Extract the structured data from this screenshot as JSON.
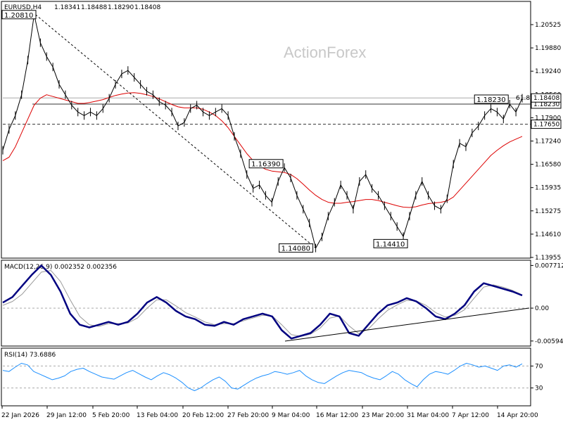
{
  "chart_data": {
    "type": "line",
    "symbol": "EURUSD,H4",
    "ohlc": {
      "open": "1.18341",
      "high": "1.18488",
      "low": "1.18290",
      "close": "1.18408"
    },
    "watermark": "ActionForex",
    "x_tick_labels": [
      "22 Jan 2026",
      "29 Jan 12:00",
      "5 Feb 20:00",
      "13 Feb 04:00",
      "20 Feb 12:00",
      "27 Feb 20:00",
      "9 Mar 04:00",
      "16 Mar 12:00",
      "23 Mar 20:00",
      "31 Mar 04:00",
      "7 Apr 12:00",
      "14 Apr 20:00"
    ],
    "main_panel": {
      "ylim": [
        1.1385,
        1.2115
      ],
      "y_ticks": [
        "1.20525",
        "1.19880",
        "1.19240",
        "1.18560",
        "1.17900",
        "1.17240",
        "1.16580",
        "1.15935",
        "1.15275",
        "1.14610",
        "1.13955"
      ],
      "price_series": [
        1.169,
        1.175,
        1.179,
        1.185,
        1.195,
        1.2081,
        1.2,
        1.196,
        1.193,
        1.188,
        1.185,
        1.182,
        1.18,
        1.179,
        1.18,
        1.179,
        1.181,
        1.184,
        1.188,
        1.191,
        1.192,
        1.19,
        1.188,
        1.186,
        1.185,
        1.183,
        1.182,
        1.18,
        1.176,
        1.177,
        1.181,
        1.182,
        1.18,
        1.179,
        1.18,
        1.181,
        1.179,
        1.173,
        1.168,
        1.162,
        1.158,
        1.159,
        1.156,
        1.154,
        1.16,
        1.164,
        1.161,
        1.156,
        1.152,
        1.148,
        1.1408,
        1.144,
        1.15,
        1.154,
        1.159,
        1.156,
        1.152,
        1.16,
        1.162,
        1.158,
        1.156,
        1.153,
        1.15,
        1.147,
        1.1441,
        1.15,
        1.156,
        1.16,
        1.156,
        1.153,
        1.152,
        1.155,
        1.165,
        1.171,
        1.17,
        1.174,
        1.176,
        1.179,
        1.181,
        1.18,
        1.178,
        1.1823,
        1.18,
        1.184
      ],
      "moving_average": [
        1.166,
        1.167,
        1.17,
        1.174,
        1.178,
        1.182,
        1.184,
        1.185,
        1.1845,
        1.184,
        1.1835,
        1.183,
        1.1825,
        1.1825,
        1.1828,
        1.1832,
        1.1836,
        1.1842,
        1.1848,
        1.1852,
        1.1855,
        1.1856,
        1.1854,
        1.185,
        1.1845,
        1.1838,
        1.183,
        1.1822,
        1.1815,
        1.1812,
        1.1812,
        1.1812,
        1.1808,
        1.18,
        1.179,
        1.1775,
        1.1755,
        1.173,
        1.1705,
        1.168,
        1.166,
        1.1645,
        1.1635,
        1.163,
        1.1628,
        1.1626,
        1.162,
        1.1608,
        1.1592,
        1.1575,
        1.156,
        1.1548,
        1.154,
        1.1537,
        1.1537,
        1.154,
        1.1542,
        1.1545,
        1.1548,
        1.1548,
        1.1545,
        1.154,
        1.1535,
        1.153,
        1.1526,
        1.1525,
        1.1527,
        1.1532,
        1.1536,
        1.1538,
        1.154,
        1.1544,
        1.1555,
        1.1575,
        1.1595,
        1.1615,
        1.1635,
        1.1655,
        1.1675,
        1.169,
        1.1703,
        1.1714,
        1.1722,
        1.173
      ],
      "horizontal_levels": [
        {
          "price": 1.1765,
          "label": "1.17650",
          "style": "dashed"
        },
        {
          "price": 1.1823,
          "label": "1.18230",
          "style": "solid"
        }
      ],
      "current_price": {
        "price": 1.18408,
        "label": "1.18408"
      },
      "fib_text": "61.8",
      "annotations": [
        {
          "label": "1.20810",
          "price": 1.2081
        },
        {
          "label": "1.16390",
          "price": 1.1639
        },
        {
          "label": "1.14080",
          "price": 1.1408
        },
        {
          "label": "1.14410",
          "price": 1.1441
        },
        {
          "label": "1.18230",
          "price": 1.1823
        }
      ],
      "colors": {
        "price": "#000000",
        "moving_average": "#dd0000",
        "trendline": "#000000"
      }
    },
    "macd_panel": {
      "label": "MACD(12,26,9) 0.002352 0.002356",
      "ylim": [
        -0.0066,
        0.0084
      ],
      "y_ticks": [
        "0.007712",
        "0.00",
        "-0.005944"
      ],
      "zero_line": 0.0,
      "macd_series": [
        0.001,
        0.002,
        0.004,
        0.006,
        0.0077,
        0.006,
        0.003,
        -0.001,
        -0.003,
        -0.0035,
        -0.003,
        -0.0025,
        -0.003,
        -0.0025,
        -0.001,
        0.001,
        0.002,
        0.001,
        -0.0005,
        -0.0015,
        -0.002,
        -0.003,
        -0.0032,
        -0.0025,
        -0.003,
        -0.002,
        -0.0015,
        -0.001,
        -0.0015,
        -0.004,
        -0.0055,
        -0.005,
        -0.0045,
        -0.003,
        -0.001,
        -0.0015,
        -0.0045,
        -0.005,
        -0.003,
        -0.001,
        0.0005,
        0.001,
        0.0018,
        0.0012,
        0.0,
        -0.0015,
        -0.002,
        -0.001,
        0.0005,
        0.003,
        0.0045,
        0.004,
        0.0035,
        0.003,
        0.0023
      ],
      "signal_series": [
        0.0005,
        0.0012,
        0.0025,
        0.0045,
        0.0065,
        0.0068,
        0.0048,
        0.0015,
        -0.0015,
        -0.003,
        -0.0033,
        -0.0028,
        -0.0028,
        -0.0027,
        -0.0018,
        0.0,
        0.0015,
        0.0015,
        0.0004,
        -0.0008,
        -0.0016,
        -0.0025,
        -0.003,
        -0.0028,
        -0.0028,
        -0.0023,
        -0.0018,
        -0.0013,
        -0.0014,
        -0.003,
        -0.0048,
        -0.0051,
        -0.0047,
        -0.0036,
        -0.0018,
        -0.0014,
        -0.0032,
        -0.0046,
        -0.0038,
        -0.002,
        -0.0004,
        0.0006,
        0.0014,
        0.0013,
        0.0005,
        -0.0008,
        -0.0016,
        -0.0013,
        -0.0003,
        0.0018,
        0.0038,
        0.0042,
        0.0038,
        0.0032,
        0.0024
      ],
      "colors": {
        "macd": "#000080",
        "signal": "#999999"
      }
    },
    "rsi_panel": {
      "label": "RSI(14) 73.6886",
      "ylim": [
        0,
        100
      ],
      "y_ticks": [
        "70",
        "30"
      ],
      "levels": [
        70,
        30
      ],
      "series": [
        62,
        60,
        68,
        75,
        72,
        60,
        55,
        50,
        45,
        48,
        52,
        60,
        64,
        66,
        60,
        55,
        50,
        48,
        46,
        52,
        58,
        62,
        56,
        50,
        45,
        52,
        58,
        54,
        48,
        40,
        30,
        25,
        30,
        38,
        45,
        50,
        42,
        30,
        28,
        35,
        42,
        48,
        52,
        55,
        60,
        58,
        55,
        58,
        62,
        52,
        45,
        40,
        38,
        45,
        52,
        58,
        62,
        60,
        58,
        52,
        48,
        45,
        52,
        60,
        55,
        45,
        38,
        32,
        45,
        55,
        60,
        58,
        55,
        62,
        70,
        75,
        72,
        68,
        70,
        66,
        62,
        70,
        72,
        68,
        74
      ],
      "colors": {
        "rsi": "#1e90ff",
        "levels": "#aaaaaa"
      }
    }
  }
}
